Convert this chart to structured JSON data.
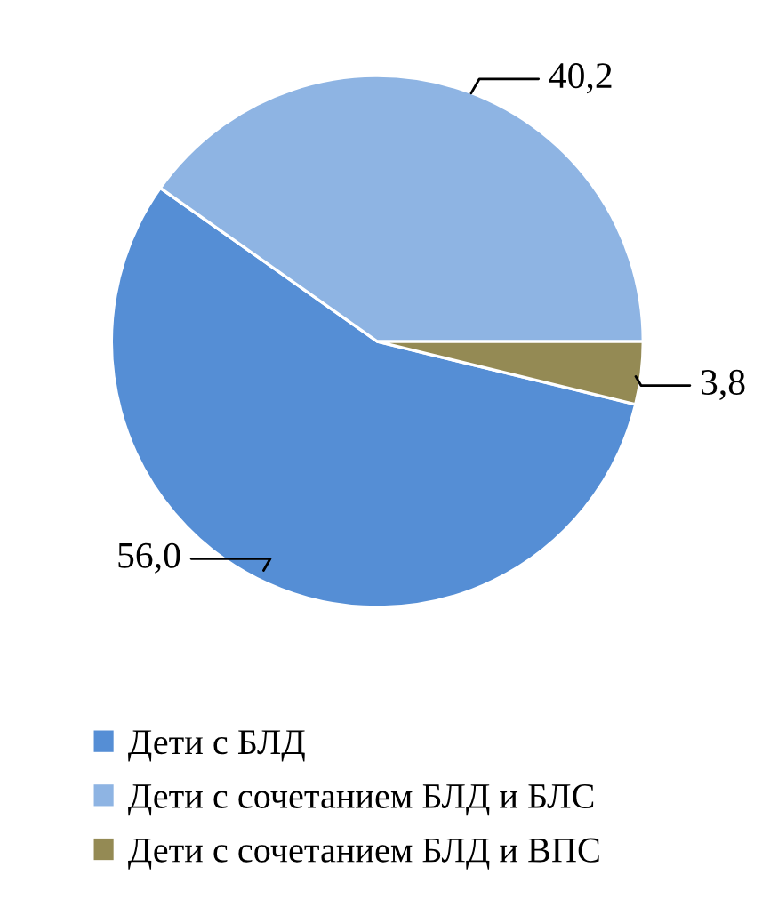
{
  "chart_data": {
    "type": "pie",
    "categories": [
      "Дети с БЛД",
      "Дети с сочетанием БЛД и БЛС",
      "Дети с сочетанием БЛД и ВПС"
    ],
    "values": [
      56.0,
      40.2,
      3.8
    ],
    "colors": [
      "#558ed5",
      "#8eb4e3",
      "#948a54"
    ],
    "value_labels": [
      "56,0",
      "40,2",
      "3,8"
    ],
    "legend": "bottom"
  }
}
